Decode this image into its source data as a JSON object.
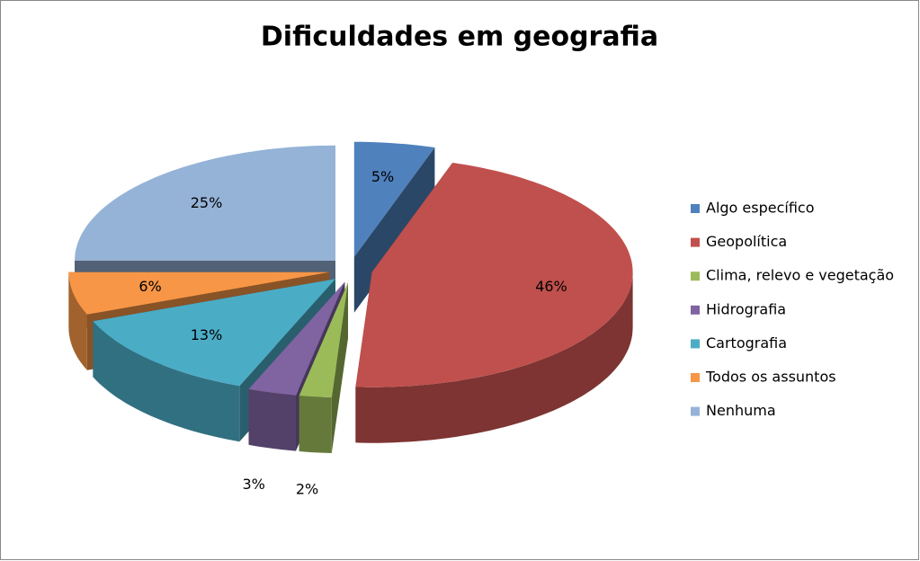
{
  "chart_data": {
    "type": "pie",
    "title": "Dificuldades em geografia",
    "categories": [
      "Algo específico",
      "Geopolítica",
      "Clima, relevo e vegetação",
      "Hidrografia",
      "Cartografia",
      "Todos os assuntos",
      "Nenhuma"
    ],
    "values": [
      5,
      46,
      2,
      3,
      13,
      6,
      25
    ],
    "value_labels": [
      "5%",
      "46%",
      "2%",
      "3%",
      "13%",
      "6%",
      "25%"
    ],
    "colors": [
      "#4f81bd",
      "#c0504d",
      "#9bbb59",
      "#8064a2",
      "#4bacc6",
      "#f79646",
      "#95b3d7"
    ],
    "legend": "right"
  }
}
